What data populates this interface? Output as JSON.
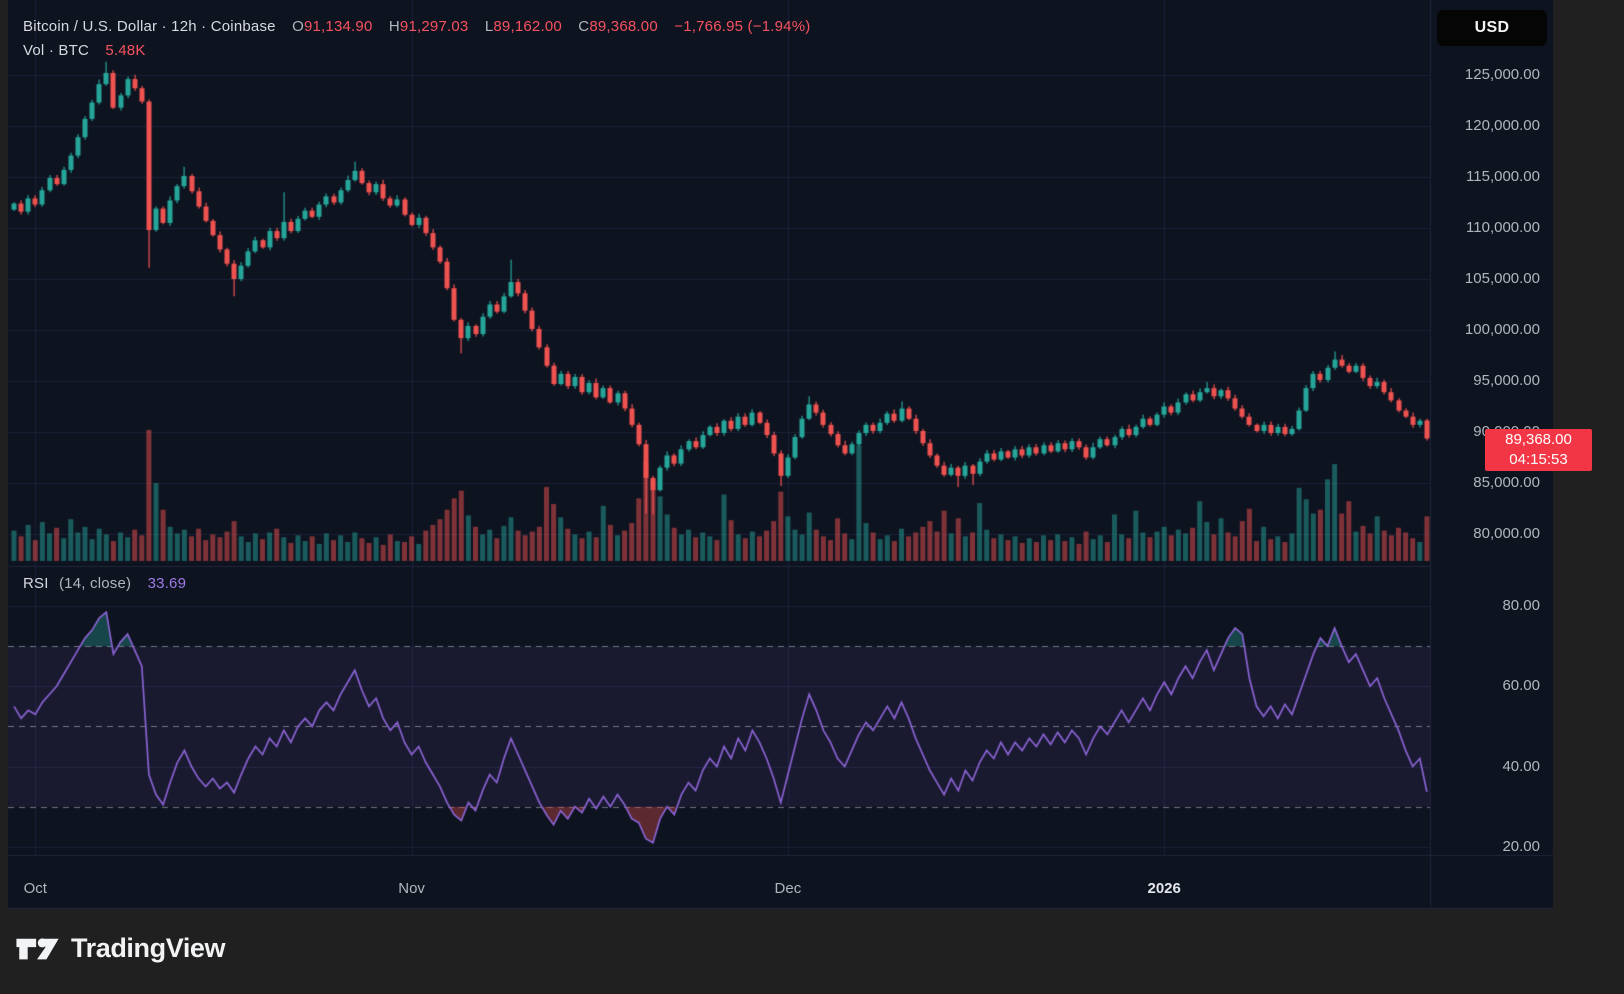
{
  "header": {
    "symbol_title": "Bitcoin / U.S. Dollar · 12h · Coinbase",
    "ohlc": {
      "open_label": "O",
      "open": "91,134.90",
      "high_label": "H",
      "high": "91,297.03",
      "low_label": "L",
      "low": "89,162.00",
      "close_label": "C",
      "close": "89,368.00",
      "change": "−1,766.95 (−1.94%)"
    },
    "volume_row": {
      "label": "Vol · BTC",
      "value": "5.48K"
    }
  },
  "price_axis": {
    "currency_button": "USD"
  },
  "price_badge": {
    "price": "89,368.00",
    "countdown": "04:15:53"
  },
  "rsi_pane": {
    "label": "RSI",
    "params": "(14, close)",
    "value": "33.69"
  },
  "footer": {
    "brand": "TradingView"
  },
  "colors": {
    "up": "#26a69a",
    "down": "#ef5350",
    "vol_up": "rgba(38,166,154,0.5)",
    "vol_down": "rgba(239,83,80,0.5)",
    "rsi_line": "#8a63d2",
    "rsi_band": "rgba(126,87,194,0.10)",
    "rsi_dash": "rgba(178,181,190,0.6)",
    "grid": "rgba(42,50,75,0.5)",
    "over_fill": "rgba(38,166,154,0.35)",
    "under_fill": "rgba(239,83,80,0.35)",
    "badge_bg": "#f23645",
    "accent_red": "#f7525f"
  },
  "chart_data": {
    "type": "candlestick+volume+rsi",
    "title": "Bitcoin / U.S. Dollar, 12h, Coinbase",
    "price_ylim": [
      76900,
      131600
    ],
    "rsi_ylim": [
      19.5,
      90
    ],
    "grid": true,
    "price_ticks": [
      {
        "value": 125000,
        "label": "125,000.00"
      },
      {
        "value": 120000,
        "label": "120,000.00"
      },
      {
        "value": 115000,
        "label": "115,000.00"
      },
      {
        "value": 110000,
        "label": "110,000.00"
      },
      {
        "value": 105000,
        "label": "105,000.00"
      },
      {
        "value": 100000,
        "label": "100,000.00"
      },
      {
        "value": 95000,
        "label": "95,000.00"
      },
      {
        "value": 90000,
        "label": "90,000.00"
      },
      {
        "value": 85000,
        "label": "85,000.00"
      },
      {
        "value": 80000,
        "label": "80,000.00"
      }
    ],
    "rsi_ticks": [
      {
        "value": 80,
        "label": "80.00"
      },
      {
        "value": 60,
        "label": "60.00"
      },
      {
        "value": 40,
        "label": "40.00"
      },
      {
        "value": 20,
        "label": "20.00"
      }
    ],
    "rsi_levels": {
      "overbought": 70,
      "middle": 50,
      "oversold": 30
    },
    "time_ticks": [
      {
        "label": "Oct",
        "candle_index": 3,
        "emphasis": false
      },
      {
        "label": "Nov",
        "candle_index": 56,
        "emphasis": false
      },
      {
        "label": "Dec",
        "candle_index": 109,
        "emphasis": false
      },
      {
        "label": "2026",
        "candle_index": 162,
        "emphasis": true
      }
    ],
    "last_price": 89368,
    "candles": {
      "open_first": 111800,
      "closes": [
        112400,
        111600,
        112900,
        112300,
        113700,
        114900,
        114300,
        115700,
        117100,
        118900,
        120700,
        122300,
        124100,
        125200,
        121800,
        123000,
        124600,
        123700,
        122400,
        109800,
        111900,
        110500,
        112700,
        114100,
        115100,
        113600,
        112100,
        110700,
        109300,
        107900,
        106500,
        105000,
        106300,
        107700,
        108800,
        108100,
        109700,
        109000,
        110600,
        109700,
        110900,
        111700,
        111100,
        112300,
        113100,
        112500,
        113700,
        114700,
        115600,
        114400,
        113500,
        114300,
        112900,
        112200,
        112800,
        111300,
        110300,
        111000,
        109500,
        108100,
        106700,
        104100,
        101000,
        99200,
        100400,
        99600,
        101300,
        102500,
        101800,
        103300,
        104700,
        103600,
        101900,
        100100,
        98300,
        96500,
        94700,
        95700,
        94500,
        95400,
        93900,
        94800,
        93400,
        94300,
        92900,
        93800,
        92300,
        90700,
        88800,
        85500,
        84300,
        86500,
        87700,
        86900,
        88300,
        89100,
        88500,
        89700,
        90500,
        89900,
        91100,
        90300,
        91500,
        90700,
        91900,
        90900,
        89700,
        87900,
        85700,
        87500,
        89500,
        91300,
        92700,
        91900,
        90700,
        89800,
        88700,
        87900,
        88800,
        89900,
        90700,
        90100,
        90900,
        91800,
        91100,
        92300,
        91300,
        90100,
        88900,
        87700,
        86700,
        85800,
        86500,
        85700,
        86700,
        85900,
        87100,
        87900,
        87300,
        88100,
        87500,
        88300,
        87700,
        88500,
        87900,
        88700,
        88100,
        88900,
        88300,
        89100,
        88500,
        87500,
        88500,
        89300,
        88700,
        89500,
        90300,
        89700,
        90500,
        91300,
        90700,
        91700,
        92500,
        91900,
        92900,
        93700,
        93100,
        93900,
        94300,
        93500,
        94100,
        93300,
        92300,
        91500,
        90700,
        90100,
        90700,
        89900,
        90500,
        89800,
        90300,
        92100,
        94300,
        95700,
        95100,
        96300,
        97100,
        96500,
        95900,
        96500,
        95300,
        94500,
        94900,
        93900,
        93100,
        92100,
        91500,
        90700,
        91100,
        89368
      ],
      "open_overrides": {
        "199": 91134.9
      },
      "high_overrides": {
        "13": 126300,
        "19": 122600,
        "24": 116000,
        "38": 113500,
        "48": 116500,
        "70": 106900,
        "112": 93500,
        "125": 93000,
        "168": 94900,
        "186": 97900,
        "199": 91297
      },
      "low_overrides": {
        "19": 106100,
        "31": 103300,
        "63": 97700,
        "89": 82000,
        "90": 81900,
        "108": 84700,
        "133": 84600,
        "135": 84800,
        "199": 89162
      },
      "volumes_kbtc": [
        3.2,
        2.6,
        3.8,
        2.2,
        4.1,
        2.9,
        3.5,
        2.4,
        4.4,
        3.0,
        3.6,
        2.3,
        3.4,
        2.8,
        2.1,
        3.0,
        2.5,
        3.3,
        2.7,
        13.8,
        8.2,
        5.4,
        3.6,
        2.9,
        3.3,
        2.6,
        3.4,
        2.2,
        2.8,
        2.5,
        3.1,
        4.2,
        2.6,
        2.0,
        2.9,
        2.3,
        3.0,
        3.4,
        2.5,
        1.9,
        2.7,
        2.1,
        2.6,
        1.8,
        2.9,
        2.2,
        2.7,
        2.0,
        3.0,
        2.4,
        1.9,
        2.5,
        1.7,
        2.8,
        2.1,
        2.0,
        2.6,
        1.8,
        3.2,
        3.8,
        4.4,
        5.4,
        6.6,
        7.4,
        4.8,
        3.6,
        2.8,
        3.3,
        2.4,
        3.7,
        4.6,
        3.2,
        2.7,
        3.1,
        3.6,
        7.8,
        6.0,
        4.6,
        3.4,
        2.8,
        2.4,
        3.1,
        2.5,
        5.8,
        3.8,
        2.7,
        3.2,
        4.0,
        6.6,
        10.4,
        8.6,
        6.8,
        4.9,
        3.5,
        2.8,
        3.3,
        2.5,
        3.0,
        2.6,
        2.2,
        7.0,
        4.3,
        2.8,
        2.4,
        3.1,
        2.6,
        3.2,
        4.2,
        7.3,
        4.7,
        3.3,
        2.8,
        5.1,
        3.3,
        2.6,
        2.2,
        4.5,
        2.9,
        2.3,
        12.2,
        4.0,
        3.0,
        2.3,
        2.7,
        2.1,
        3.4,
        2.6,
        3.0,
        3.6,
        4.2,
        3.1,
        5.3,
        2.9,
        4.5,
        2.6,
        3.0,
        6.1,
        3.3,
        2.4,
        2.8,
        2.2,
        2.6,
        1.9,
        2.4,
        2.0,
        2.7,
        2.2,
        2.8,
        2.1,
        2.5,
        1.8,
        3.1,
        2.3,
        2.7,
        2.0,
        4.9,
        2.8,
        2.4,
        5.3,
        3.0,
        2.5,
        3.1,
        3.6,
        2.7,
        3.3,
        2.9,
        3.5,
        6.3,
        4.1,
        2.8,
        4.5,
        3.0,
        2.6,
        4.2,
        5.5,
        2.1,
        3.6,
        2.3,
        2.6,
        2.0,
        2.9,
        7.7,
        6.5,
        5.0,
        5.4,
        8.6,
        10.2,
        5.0,
        6.3,
        3.1,
        3.7,
        2.9,
        4.7,
        3.2,
        2.7,
        3.5,
        3.0,
        2.4,
        2.0,
        4.7
      ],
      "rsi": [
        55,
        52,
        54,
        53,
        56,
        58,
        60,
        63,
        66,
        69,
        72,
        74,
        77,
        78.5,
        68,
        71,
        73,
        69,
        65,
        38,
        33,
        30.5,
        36,
        41,
        44,
        40,
        37,
        35,
        37,
        34.5,
        36,
        33.5,
        38,
        42,
        45,
        43,
        47,
        45,
        49,
        46,
        50,
        52,
        50,
        54,
        56,
        54,
        58,
        61,
        64,
        59,
        55,
        57,
        52,
        49,
        51,
        46,
        43,
        45,
        41,
        38,
        35,
        31,
        28,
        26.5,
        31,
        29,
        34,
        38,
        36,
        42,
        47,
        43,
        39,
        35,
        31,
        28,
        25.5,
        29,
        27,
        30,
        28.5,
        32,
        29.5,
        32.5,
        30,
        33,
        30.5,
        27,
        26,
        22,
        21,
        27,
        30,
        28,
        33,
        36,
        34,
        39,
        42,
        40,
        45,
        42,
        47,
        44,
        49,
        46,
        42,
        37,
        31,
        38,
        45,
        52,
        58,
        54,
        49,
        46,
        42,
        40,
        44,
        48,
        51,
        49,
        52,
        55,
        52,
        56,
        52,
        47,
        43,
        39,
        36,
        33,
        37,
        34,
        39,
        36.5,
        41,
        44,
        42,
        46,
        43,
        46,
        44,
        47,
        45,
        48,
        45.5,
        48.5,
        46,
        49,
        47,
        43,
        47,
        50,
        48,
        51,
        54,
        51,
        54,
        57,
        54,
        58,
        61,
        58,
        62,
        65,
        62,
        66,
        69,
        64,
        68,
        72,
        74.5,
        73,
        62,
        55,
        52.5,
        55,
        52,
        55.5,
        53,
        58,
        63,
        68,
        72,
        70,
        74.5,
        70,
        66,
        68,
        64,
        60,
        62,
        57,
        53,
        49,
        44,
        40,
        42,
        33.69
      ]
    }
  }
}
